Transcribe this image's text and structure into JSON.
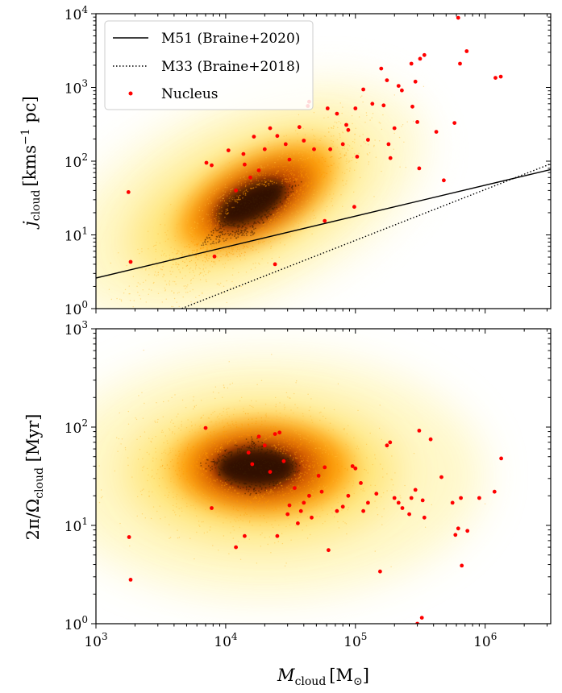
{
  "chart_data": [
    {
      "type": "scatter",
      "panel": "top",
      "ylabel": "j_cloud [kms^-1 pc]",
      "ylabel_parts": {
        "main": "j",
        "sub": "cloud",
        "unit_pre": "[kms",
        "unit_sup": "−1",
        "unit_post": " pc]"
      },
      "xscale": "log",
      "yscale": "log",
      "xlim": [
        1000,
        3200000
      ],
      "ylim": [
        1,
        10000
      ],
      "yticks": [
        {
          "value": 1,
          "base": "10",
          "exp": "0"
        },
        {
          "value": 10,
          "base": "10",
          "exp": "1"
        },
        {
          "value": 100,
          "base": "10",
          "exp": "2"
        },
        {
          "value": 1000,
          "base": "10",
          "exp": "3"
        },
        {
          "value": 10000,
          "base": "10",
          "exp": "4"
        }
      ],
      "legend_position": "top-left",
      "lines": [
        {
          "name": "M51 (Braine+2020)",
          "style": "solid",
          "color": "#000000",
          "x": [
            1000,
            3200000
          ],
          "y": [
            2.6,
            77
          ]
        },
        {
          "name": "M33 (Braine+2018)",
          "style": "dotted",
          "color": "#000000",
          "x": [
            3000,
            3200000
          ],
          "y": [
            0.75,
            92
          ]
        }
      ],
      "density": {
        "name": "Clouds",
        "color": "#ff9900",
        "center_logx": 4.2,
        "center_logy": 1.3,
        "note": "2D density of all clouds shown as yellow-orange-black heat"
      },
      "nucleus": {
        "name": "Nucleus",
        "color": "#ff0000",
        "points": [
          [
            1780,
            38
          ],
          [
            1850,
            4.3
          ],
          [
            7100,
            95
          ],
          [
            7800,
            88
          ],
          [
            8200,
            5.1
          ],
          [
            10500,
            140
          ],
          [
            12000,
            40
          ],
          [
            13700,
            125
          ],
          [
            14000,
            90
          ],
          [
            15500,
            60
          ],
          [
            16500,
            215
          ],
          [
            18000,
            75
          ],
          [
            20000,
            145
          ],
          [
            22000,
            280
          ],
          [
            25000,
            220
          ],
          [
            24000,
            4.0
          ],
          [
            29000,
            170
          ],
          [
            31000,
            105
          ],
          [
            37000,
            290
          ],
          [
            40000,
            190
          ],
          [
            43000,
            560
          ],
          [
            44000,
            640
          ],
          [
            48000,
            145
          ],
          [
            58000,
            15.5
          ],
          [
            61000,
            520
          ],
          [
            64000,
            145
          ],
          [
            72000,
            440
          ],
          [
            80000,
            170
          ],
          [
            85000,
            310
          ],
          [
            88000,
            265
          ],
          [
            98000,
            24
          ],
          [
            100000,
            520
          ],
          [
            103000,
            115
          ],
          [
            115000,
            940
          ],
          [
            125000,
            195
          ],
          [
            135000,
            600
          ],
          [
            158000,
            1800
          ],
          [
            165000,
            570
          ],
          [
            175000,
            1250
          ],
          [
            180000,
            170
          ],
          [
            186000,
            110
          ],
          [
            200000,
            280
          ],
          [
            215000,
            1050
          ],
          [
            228000,
            910
          ],
          [
            270000,
            2100
          ],
          [
            275000,
            550
          ],
          [
            290000,
            1200
          ],
          [
            300000,
            340
          ],
          [
            310000,
            80
          ],
          [
            315000,
            2450
          ],
          [
            340000,
            2750
          ],
          [
            420000,
            250
          ],
          [
            480000,
            55
          ],
          [
            580000,
            330
          ],
          [
            620000,
            8800
          ],
          [
            640000,
            2100
          ],
          [
            720000,
            3100
          ],
          [
            1200000,
            1350
          ],
          [
            1320000,
            1400
          ]
        ]
      }
    },
    {
      "type": "scatter",
      "panel": "bottom",
      "xlabel": "M_cloud [M_⊙]",
      "xlabel_parts": {
        "main": "M",
        "sub": "cloud",
        "unit_pre": "[M",
        "unit_sub": "⊙",
        "unit_post": "]"
      },
      "ylabel": "2π/Ω_cloud [Myr]",
      "ylabel_parts": {
        "main": "2π/Ω",
        "sub": "cloud",
        "unit": " [Myr]"
      },
      "xscale": "log",
      "yscale": "log",
      "xlim": [
        1000,
        3200000
      ],
      "ylim": [
        1,
        1000
      ],
      "xticks": [
        {
          "value": 1000,
          "base": "10",
          "exp": "3"
        },
        {
          "value": 10000,
          "base": "10",
          "exp": "4"
        },
        {
          "value": 100000,
          "base": "10",
          "exp": "5"
        },
        {
          "value": 1000000,
          "base": "10",
          "exp": "6"
        }
      ],
      "yticks": [
        {
          "value": 1,
          "base": "10",
          "exp": "0"
        },
        {
          "value": 10,
          "base": "10",
          "exp": "1"
        },
        {
          "value": 100,
          "base": "10",
          "exp": "2"
        },
        {
          "value": 1000,
          "base": "10",
          "exp": "3"
        }
      ],
      "density": {
        "name": "Clouds",
        "color": "#ff9900",
        "center_logx": 4.2,
        "center_logy": 1.6,
        "note": "2D density of all clouds shown as yellow-orange-black heat"
      },
      "nucleus": {
        "name": "Nucleus",
        "color": "#ff0000",
        "points": [
          [
            1800,
            7.6
          ],
          [
            1850,
            2.8
          ],
          [
            7000,
            98
          ],
          [
            7800,
            15
          ],
          [
            12000,
            6.0
          ],
          [
            14000,
            7.8
          ],
          [
            15000,
            55
          ],
          [
            16000,
            42
          ],
          [
            18000,
            80
          ],
          [
            20000,
            65
          ],
          [
            22000,
            35
          ],
          [
            24000,
            85
          ],
          [
            25000,
            7.8
          ],
          [
            26000,
            88
          ],
          [
            28000,
            45
          ],
          [
            30000,
            13
          ],
          [
            31000,
            16
          ],
          [
            34000,
            24
          ],
          [
            36000,
            10.5
          ],
          [
            38000,
            14
          ],
          [
            40000,
            17
          ],
          [
            44000,
            20
          ],
          [
            46000,
            12
          ],
          [
            52000,
            32
          ],
          [
            55000,
            22
          ],
          [
            58000,
            39
          ],
          [
            62000,
            5.6
          ],
          [
            72000,
            14
          ],
          [
            80000,
            15.5
          ],
          [
            88000,
            20
          ],
          [
            95000,
            40
          ],
          [
            100000,
            38
          ],
          [
            110000,
            27
          ],
          [
            115000,
            14
          ],
          [
            125000,
            17
          ],
          [
            145000,
            21
          ],
          [
            155000,
            3.4
          ],
          [
            175000,
            65
          ],
          [
            185000,
            70
          ],
          [
            200000,
            19
          ],
          [
            215000,
            17
          ],
          [
            230000,
            15
          ],
          [
            260000,
            13
          ],
          [
            270000,
            19
          ],
          [
            290000,
            23
          ],
          [
            300000,
            1.0
          ],
          [
            310000,
            92
          ],
          [
            325000,
            1.15
          ],
          [
            330000,
            18
          ],
          [
            340000,
            12
          ],
          [
            380000,
            75
          ],
          [
            460000,
            31
          ],
          [
            560000,
            17
          ],
          [
            590000,
            8
          ],
          [
            620000,
            9.3
          ],
          [
            650000,
            19
          ],
          [
            660000,
            3.9
          ],
          [
            730000,
            8.8
          ],
          [
            900000,
            19
          ],
          [
            1180000,
            22
          ],
          [
            1330000,
            48
          ]
        ]
      }
    }
  ],
  "legend": {
    "items": [
      {
        "label": "M51 (Braine+2020)",
        "kind": "solid"
      },
      {
        "label": "M33 (Braine+2018)",
        "kind": "dotted"
      },
      {
        "label": "Nucleus",
        "kind": "dot",
        "color": "#ff0000"
      }
    ]
  },
  "colors": {
    "nucleus": "#ff0000",
    "density_low": "#ffffcc",
    "density_mid": "#ff9900",
    "density_high": "#1a0a00",
    "cloud_points": "#ffaa00"
  }
}
